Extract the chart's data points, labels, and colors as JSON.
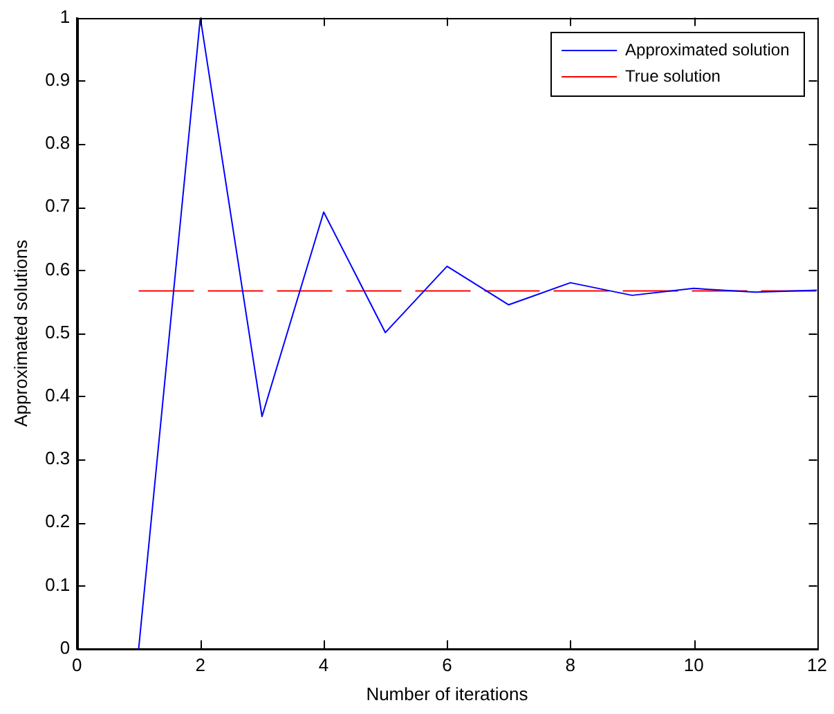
{
  "chart_data": {
    "type": "line",
    "xlabel": "Number of iterations",
    "ylabel": "Approximated solutions",
    "xlim": [
      0,
      12
    ],
    "xticks": [
      0,
      2,
      4,
      6,
      8,
      10,
      12
    ],
    "ylim": [
      0,
      1
    ],
    "yticks": [
      0,
      0.1,
      0.2,
      0.3,
      0.4,
      0.5,
      0.6,
      0.7,
      0.8,
      0.9,
      1
    ],
    "grid": false,
    "legend": "top right",
    "marker": "none",
    "series": [
      {
        "name": "Approximated solution",
        "color": "#0000ff",
        "line_style": "solid",
        "x": [
          1,
          2,
          3,
          4,
          5,
          6,
          7,
          8,
          9,
          10,
          11,
          12
        ],
        "values": [
          0,
          1,
          0.368,
          0.692,
          0.501,
          0.606,
          0.545,
          0.58,
          0.56,
          0.571,
          0.565,
          0.568
        ]
      },
      {
        "name": "True solution",
        "color": "#ff0000",
        "line_style": "dashed",
        "x": [
          1,
          12
        ],
        "values": [
          0.567,
          0.567
        ]
      }
    ]
  }
}
